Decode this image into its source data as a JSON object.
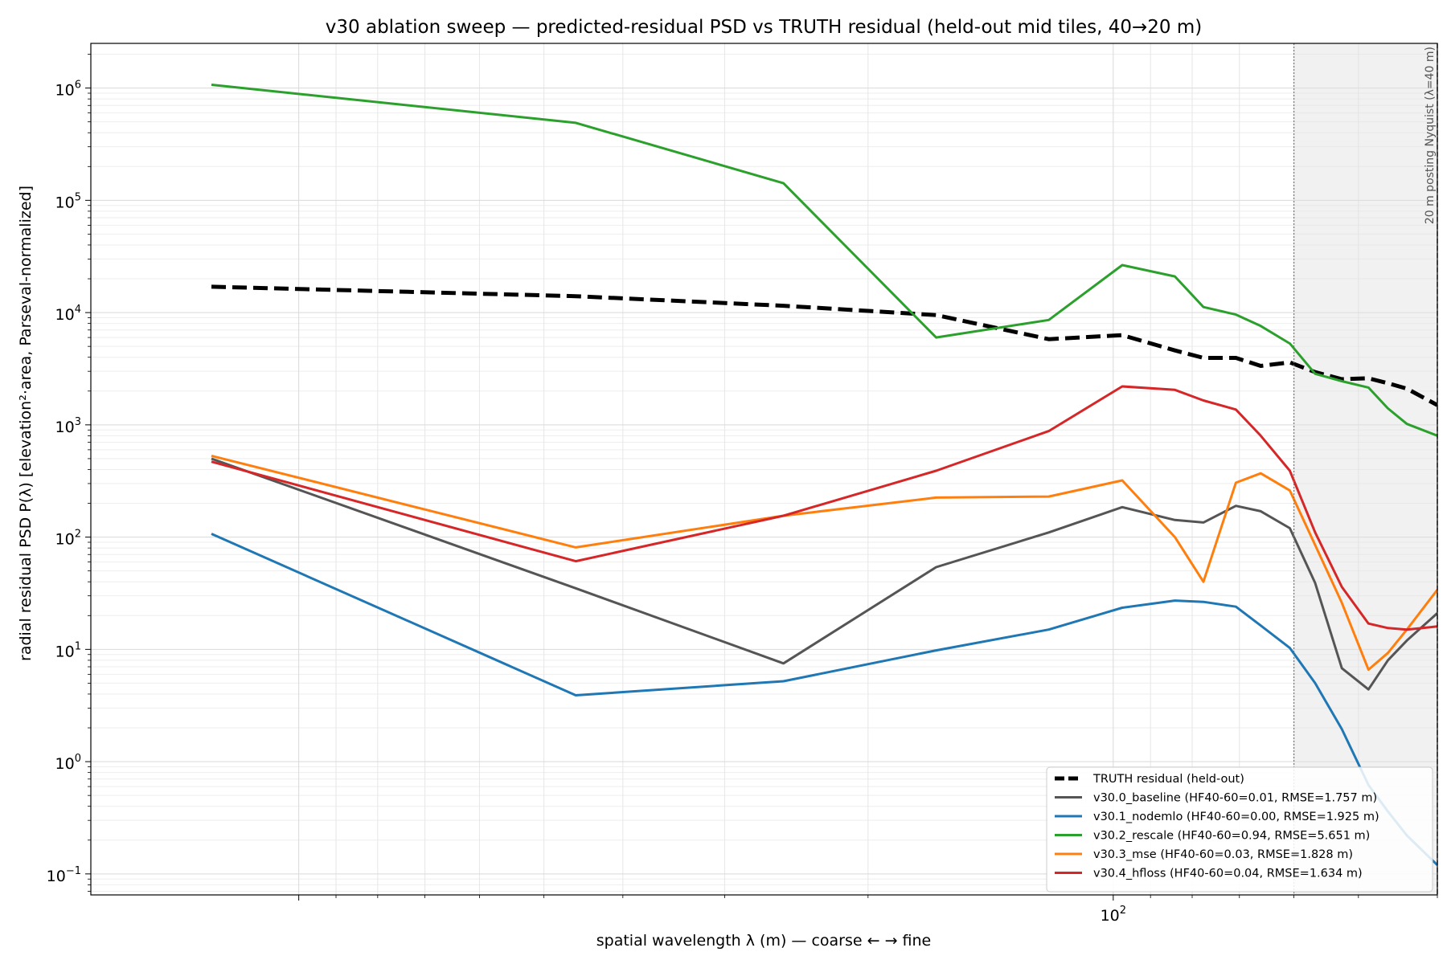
{
  "chart_data": {
    "type": "line",
    "title": "v30 ablation sweep — predicted-residual PSD vs TRUTH residual (held-out mid tiles, 40→20 m)",
    "xlabel": "spatial wavelength λ (m) — coarse ← → fine",
    "ylabel": "radial residual PSD  P(λ)  [elevation²·area, Parseval-normalized]",
    "x_scale": "log",
    "x_inverted": true,
    "y_scale": "log",
    "xlim": [
      1800,
      40
    ],
    "ylim": [
      0.065,
      2500000
    ],
    "grid": true,
    "x_tick_labels": [
      {
        "value": 100,
        "base": "10",
        "exp": "2"
      }
    ],
    "y_tick_labels": [
      {
        "value": 0.1,
        "base": "10",
        "exp": "−1"
      },
      {
        "value": 1,
        "base": "10",
        "exp": "0"
      },
      {
        "value": 10,
        "base": "10",
        "exp": "1"
      },
      {
        "value": 100,
        "base": "10",
        "exp": "2"
      },
      {
        "value": 1000,
        "base": "10",
        "exp": "3"
      },
      {
        "value": 10000,
        "base": "10",
        "exp": "4"
      },
      {
        "value": 100000,
        "base": "10",
        "exp": "5"
      },
      {
        "value": 1000000,
        "base": "10",
        "exp": "6"
      }
    ],
    "shaded_band": {
      "x_from": 60,
      "x_to": 40
    },
    "reference_line": {
      "x": 60
    },
    "nyquist_line": {
      "x": 40,
      "label": "20 m posting Nyquist (λ=40 m)"
    },
    "legend_position": "lower-right",
    "x": [
      1280,
      457,
      254,
      165,
      120,
      97.5,
      84,
      77.5,
      70.7,
      65.9,
      60.7,
      56.5,
      52.4,
      48.6,
      46,
      43.6,
      40
    ],
    "series": [
      {
        "name": "TRUTH residual (held-out)",
        "color": "#000000",
        "dashed": true,
        "values": [
          17000,
          14000,
          11500,
          9500,
          5800,
          6300,
          4600,
          3950,
          3950,
          3350,
          3600,
          2950,
          2550,
          2600,
          2350,
          2100,
          1500
        ]
      },
      {
        "name": "v30.0_baseline  (HF40-60=0.01, RMSE=1.757 m)",
        "color": "#555555",
        "values": [
          500,
          35,
          7.5,
          54,
          110,
          185,
          142,
          135,
          190,
          170,
          120,
          39,
          6.8,
          4.4,
          8,
          12,
          21
        ]
      },
      {
        "name": "v30.1_nodemlo  (HF40-60=0.00, RMSE=1.925 m)",
        "color": "#1f77b4",
        "values": [
          107,
          3.9,
          5.2,
          9.8,
          15,
          23.5,
          27.2,
          26.5,
          24,
          16.3,
          10.3,
          5,
          1.95,
          0.62,
          0.36,
          0.22,
          0.12
        ]
      },
      {
        "name": "v30.2_rescale  (HF40-60=0.94, RMSE=5.651 m)",
        "color": "#2ca02c",
        "values": [
          1070000,
          490000,
          142000,
          6000,
          8600,
          26500,
          21000,
          11200,
          9600,
          7600,
          5300,
          2850,
          2450,
          2150,
          1400,
          1020,
          800
        ]
      },
      {
        "name": "v30.3_mse  (HF40-60=0.03, RMSE=1.828 m)",
        "color": "#ff7f0e",
        "values": [
          530,
          81,
          155,
          225,
          230,
          320,
          100,
          40,
          305,
          370,
          260,
          85,
          26,
          6.6,
          9.3,
          15,
          34
        ]
      },
      {
        "name": "v30.4_hfloss  (HF40-60=0.04, RMSE=1.634 m)",
        "color": "#d62728",
        "values": [
          470,
          61,
          155,
          390,
          880,
          2200,
          2050,
          1650,
          1370,
          800,
          390,
          110,
          36,
          17,
          15.5,
          15,
          16
        ]
      }
    ]
  }
}
